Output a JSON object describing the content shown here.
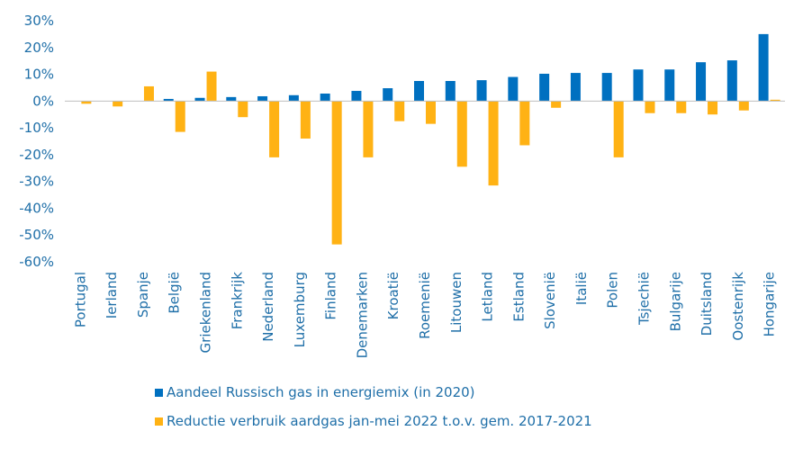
{
  "chart_data": {
    "type": "bar",
    "categories": [
      "Portugal",
      "Ierland",
      "Spanje",
      "België",
      "Griekenland",
      "Frankrijk",
      "Nederland",
      "Luxemburg",
      "Finland",
      "Denemarken",
      "Kroatië",
      "Roemenië",
      "Litouwen",
      "Letland",
      "Estland",
      "Slovenië",
      "Italië",
      "Polen",
      "Tsjechië",
      "Bulgarije",
      "Duitsland",
      "Oostenrijk",
      "Hongarije"
    ],
    "series": [
      {
        "name": "Aandeel Russisch gas in energiemix (in 2020)",
        "color": "#0070c0",
        "values": [
          0,
          0,
          0,
          0.8,
          1.2,
          1.5,
          1.8,
          2.2,
          2.8,
          3.8,
          4.8,
          7.5,
          7.5,
          7.8,
          9,
          10.2,
          10.5,
          10.5,
          11.8,
          11.8,
          14.5,
          15.2,
          25
        ]
      },
      {
        "name": "Reductie verbruik aardgas jan-mei 2022 t.o.v. gem. 2017-2021",
        "color": "#ffb214",
        "values": [
          -1,
          -2,
          5.5,
          -11.5,
          11,
          -6,
          -21,
          -14,
          -53.5,
          -21,
          -7.5,
          -8.5,
          -24.5,
          -31.5,
          -16.5,
          -2.5,
          0,
          -21,
          -4.5,
          -4.5,
          -5,
          -3.5,
          0.5
        ]
      }
    ],
    "ylim": [
      -60,
      30
    ],
    "yticks": [
      "30%",
      "20%",
      "10%",
      "0%",
      "-10%",
      "-20%",
      "-30%",
      "-40%",
      "-50%",
      "-60%"
    ],
    "ytick_values": [
      30,
      20,
      10,
      0,
      -10,
      -20,
      -30,
      -40,
      -50,
      -60
    ],
    "legend_position": "bottom",
    "grid": false
  }
}
